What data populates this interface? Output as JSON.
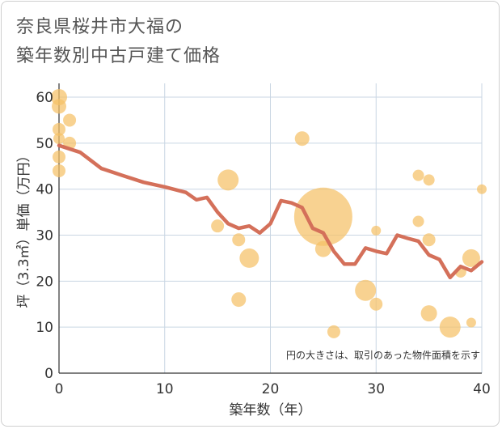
{
  "title_line1": "奈良県桜井市大福の",
  "title_line2": "築年数別中古戸建て価格",
  "chart_data": {
    "type": "scatter",
    "xlabel": "築年数（年）",
    "ylabel": "坪（3.3㎡）単価（万円）",
    "xlim": [
      0,
      40
    ],
    "ylim": [
      0,
      63
    ],
    "xticks": [
      0,
      10,
      20,
      30,
      40
    ],
    "yticks": [
      0,
      10,
      20,
      30,
      40,
      50,
      60
    ],
    "grid": true,
    "note": "円の大きさは、取引のあった物件面積を示す",
    "colors": {
      "bubble": "#f5c066",
      "line": "#d4705a",
      "grid": "#c9d6e3"
    },
    "bubbles": [
      {
        "x": 0,
        "y": 60,
        "size": 10
      },
      {
        "x": 0,
        "y": 58,
        "size": 9
      },
      {
        "x": 0,
        "y": 53,
        "size": 8
      },
      {
        "x": 0,
        "y": 51,
        "size": 7
      },
      {
        "x": 0,
        "y": 47,
        "size": 8
      },
      {
        "x": 0,
        "y": 44,
        "size": 8
      },
      {
        "x": 1,
        "y": 55,
        "size": 8
      },
      {
        "x": 1,
        "y": 50,
        "size": 8
      },
      {
        "x": 15,
        "y": 32,
        "size": 8
      },
      {
        "x": 16,
        "y": 42,
        "size": 13
      },
      {
        "x": 17,
        "y": 29,
        "size": 8
      },
      {
        "x": 17,
        "y": 16,
        "size": 9
      },
      {
        "x": 18,
        "y": 25,
        "size": 12
      },
      {
        "x": 23,
        "y": 51,
        "size": 9
      },
      {
        "x": 25,
        "y": 34,
        "size": 36
      },
      {
        "x": 25,
        "y": 27,
        "size": 10
      },
      {
        "x": 26,
        "y": 9,
        "size": 8
      },
      {
        "x": 29,
        "y": 18,
        "size": 13
      },
      {
        "x": 30,
        "y": 31,
        "size": 6
      },
      {
        "x": 30,
        "y": 15,
        "size": 8
      },
      {
        "x": 34,
        "y": 43,
        "size": 7
      },
      {
        "x": 34,
        "y": 33,
        "size": 7
      },
      {
        "x": 35,
        "y": 42,
        "size": 7
      },
      {
        "x": 35,
        "y": 29,
        "size": 8
      },
      {
        "x": 35,
        "y": 13,
        "size": 10
      },
      {
        "x": 37,
        "y": 10,
        "size": 13
      },
      {
        "x": 38,
        "y": 22,
        "size": 7
      },
      {
        "x": 39,
        "y": 25,
        "size": 11
      },
      {
        "x": 39,
        "y": 11,
        "size": 6
      },
      {
        "x": 40,
        "y": 40,
        "size": 6
      }
    ],
    "series": [
      {
        "name": "average",
        "x": [
          0,
          2,
          4,
          6,
          8,
          10,
          12,
          13,
          14,
          15,
          16,
          17,
          18,
          19,
          20,
          21,
          22,
          23,
          24,
          25,
          26,
          27,
          28,
          29,
          30,
          31,
          32,
          33,
          34,
          35,
          36,
          37,
          38,
          39,
          40
        ],
        "y": [
          49.5,
          48,
          44.5,
          43,
          41.5,
          40.5,
          39.3,
          37.7,
          38.2,
          35,
          32.5,
          31.5,
          32,
          30.5,
          32.5,
          37.5,
          37,
          36,
          31.5,
          30.5,
          26.5,
          23.7,
          23.7,
          27.2,
          26.5,
          26,
          30,
          29.3,
          28.7,
          25.7,
          24.7,
          20.8,
          23.2,
          22.3,
          24.2
        ]
      }
    ]
  }
}
